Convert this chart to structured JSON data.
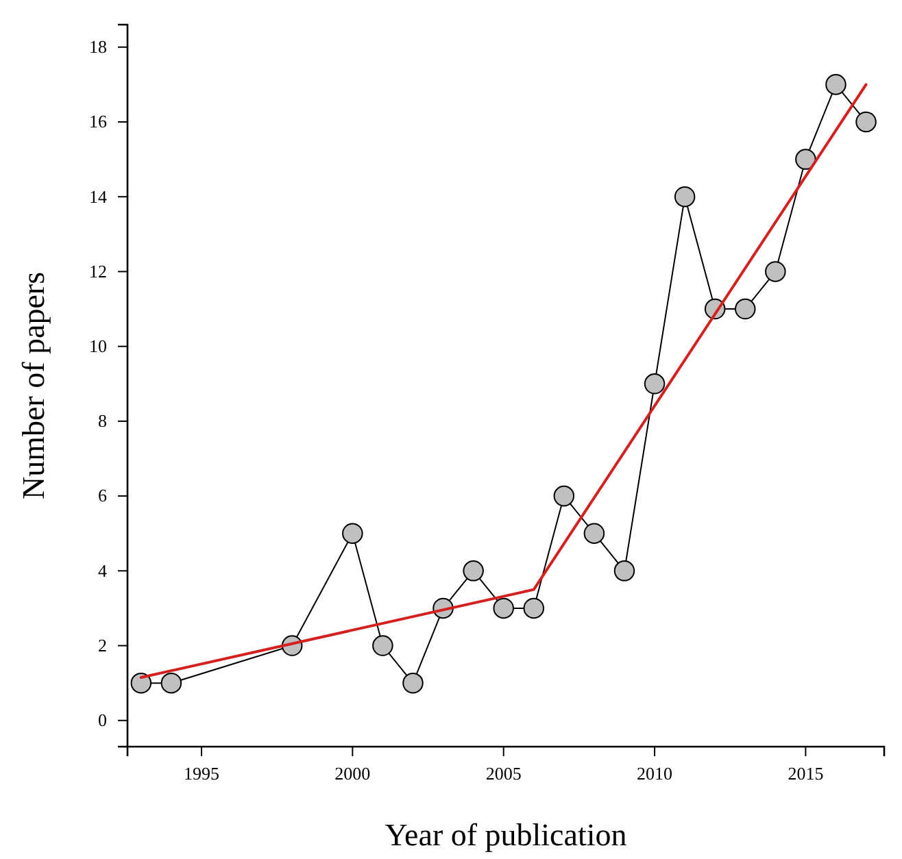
{
  "chart_data": {
    "type": "line",
    "xlabel": "Year of publication",
    "ylabel": "Number of papers",
    "xlim": [
      1992.55,
      2017.6
    ],
    "ylim": [
      -0.7,
      18.6
    ],
    "xticks": [
      1995,
      2000,
      2005,
      2010,
      2015
    ],
    "yticks": [
      0,
      2,
      4,
      6,
      8,
      10,
      12,
      14,
      16,
      18
    ],
    "grid": false,
    "series": [
      {
        "color": "#000000",
        "marker": "circle",
        "x": [
          1993,
          1994,
          1998,
          2000,
          2001,
          2002,
          2003,
          2004,
          2005,
          2006,
          2007,
          2008,
          2009,
          2010,
          2011,
          2012,
          2013,
          2014,
          2015,
          2016,
          2017
        ],
        "values": [
          1,
          1,
          2,
          5,
          2,
          1,
          3,
          4,
          3,
          3,
          6,
          5,
          4,
          9,
          14,
          11,
          11,
          12,
          15,
          17,
          16
        ]
      },
      {
        "color": "#d62020",
        "marker": "none",
        "x": [
          1993,
          2006,
          2017
        ],
        "values": [
          1.15,
          3.5,
          17
        ]
      }
    ]
  }
}
